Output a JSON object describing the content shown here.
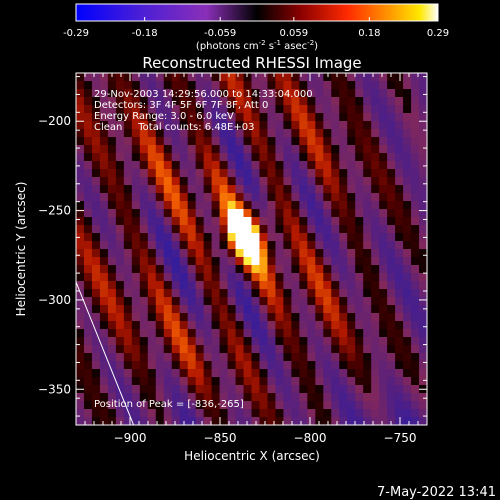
{
  "colorbar": {
    "tick_labels": [
      "-0.29",
      "-0.18",
      "-0.059",
      "0.059",
      "0.18",
      "0.29"
    ],
    "range": [
      -0.29,
      0.29
    ],
    "units_pre": "(photons cm",
    "units_exp1": "-2",
    "units_mid1": " s",
    "units_exp2": "-1",
    "units_mid2": " asec",
    "units_exp3": "-2",
    "units_post": ")"
  },
  "chart_data": {
    "type": "heatmap",
    "title": "Reconstructed RHESSI Image",
    "xlabel": "Heliocentric X (arcsec)",
    "ylabel": "Heliocentric Y (arcsec)",
    "xlim": [
      -930,
      -735
    ],
    "ylim": [
      -370,
      -173
    ],
    "x_ticks": [
      -900,
      -850,
      -800,
      -750
    ],
    "y_ticks": [
      -200,
      -250,
      -300,
      -350
    ],
    "colormap": "RHESSI hot (black-red-orange-yellow-white) with purple/blue negatives",
    "peak": [
      -836,
      -265
    ],
    "peak_value": 0.29,
    "limb_line": [
      [
        -930,
        -290
      ],
      [
        -898,
        -370
      ]
    ]
  },
  "annotations": {
    "line1": "29-Nov-2003 14:29:56.000 to 14:33:04.000",
    "line2": "Detectors: 3F 4F 5F 6F 7F 8F, Att 0",
    "line3": "Energy Range: 3.0 - 6.0 keV",
    "line4": "Clean     Total counts: 6.48E+03",
    "peak_label": "Position of Peak = [-836,-265]"
  },
  "footer": {
    "timestamp": "7-May-2022 13:41"
  }
}
